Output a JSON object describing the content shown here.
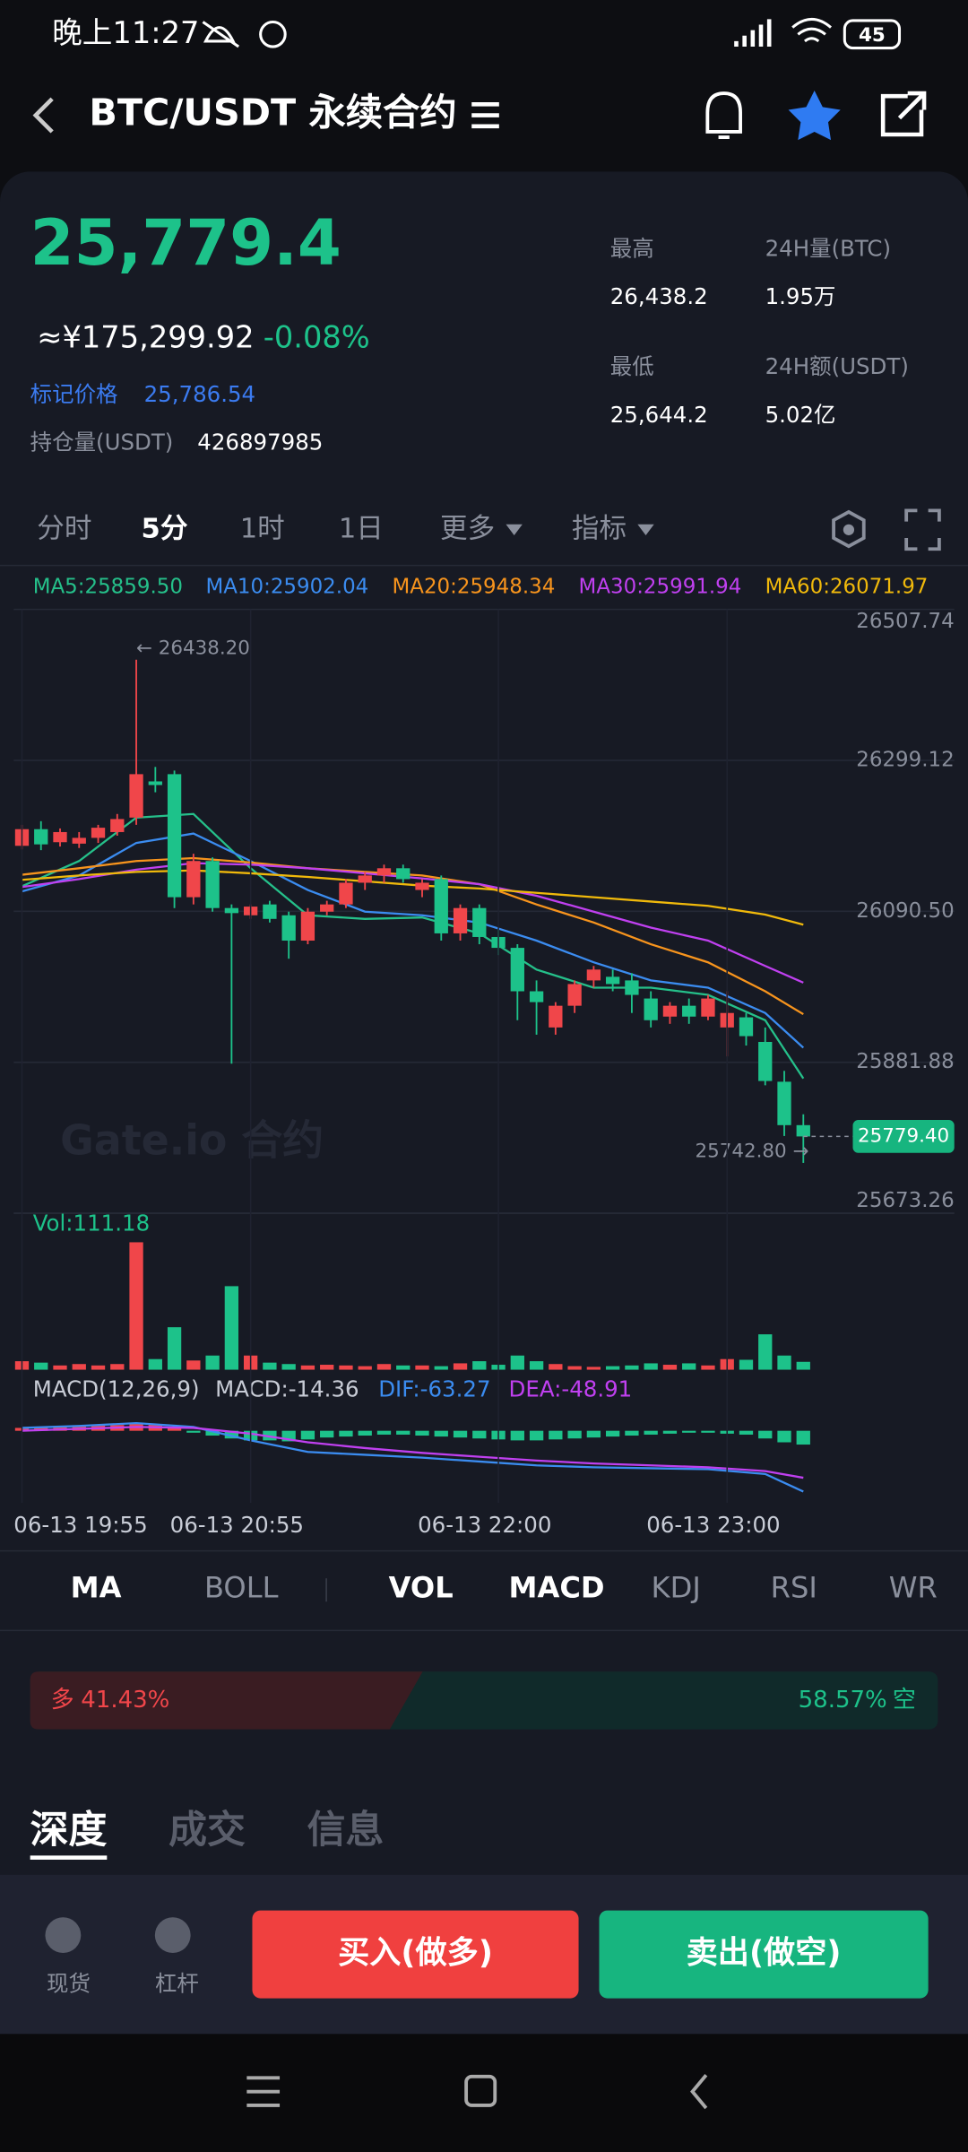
{
  "status_bar": {
    "time": "晚上11:27",
    "battery": "45"
  },
  "header": {
    "title": "BTC/USDT 永续合约"
  },
  "ticker": {
    "price": "25,779.4",
    "cny": "≈¥175,299.92",
    "change": "-0.08%",
    "mark_label": "标记价格",
    "mark_value": "25,786.54",
    "oi_label": "持仓量(USDT)",
    "oi_value": "426897985",
    "high_label": "最高",
    "high": "26,438.2",
    "vol_label": "24H量(BTC)",
    "vol": "1.95万",
    "low_label": "最低",
    "low": "25,644.2",
    "amount_label": "24H额(USDT)",
    "amount": "5.02亿"
  },
  "intervals": [
    "分时",
    "5分",
    "1时",
    "1日",
    "更多",
    "指标"
  ],
  "chart": {
    "type": "candlestick",
    "ylim": [
      25673.26,
      26507.74
    ],
    "yticks": [
      26507.74,
      26299.12,
      {
        "value": 26090.5,
        "label": "26090.50"
      },
      25881.88,
      25673.26
    ],
    "candles": [
      [
        26181,
        26210,
        26176,
        26204
      ],
      [
        26204,
        26215,
        26175,
        26183
      ],
      [
        26186,
        26205,
        26180,
        26200
      ],
      [
        26184,
        26200,
        26178,
        26192
      ],
      [
        26192,
        26210,
        26185,
        26206
      ],
      [
        26200,
        26225,
        26195,
        26218
      ],
      [
        26220,
        26438.2,
        26210,
        26280
      ],
      [
        26270,
        26290,
        26255,
        26265
      ],
      [
        26280,
        26285,
        26095,
        26110
      ],
      [
        26110,
        26170,
        26100,
        26160
      ],
      [
        26160,
        26165,
        26090,
        26095
      ],
      [
        26095,
        26100,
        25880,
        26088
      ],
      [
        26085,
        26100,
        26080,
        26097
      ],
      [
        26100,
        26105,
        26075,
        26080
      ],
      [
        26085,
        26090,
        26025,
        26050
      ],
      [
        26050,
        26095,
        26045,
        26090
      ],
      [
        26090,
        26105,
        26085,
        26100
      ],
      [
        26100,
        26135,
        26095,
        26130
      ],
      [
        26130,
        26145,
        26120,
        26140
      ],
      [
        26140,
        26155,
        26130,
        26150
      ],
      [
        26150,
        26155,
        26130,
        26135
      ],
      [
        26120,
        26135,
        26110,
        26130
      ],
      [
        26135,
        26140,
        26050,
        26060
      ],
      [
        26060,
        26100,
        26050,
        26095
      ],
      [
        26095,
        26100,
        26045,
        26055
      ],
      [
        26055,
        26065,
        26030,
        26040
      ],
      [
        26040,
        26045,
        25940,
        25980
      ],
      [
        25980,
        25995,
        25920,
        25965
      ],
      [
        25930,
        25965,
        25920,
        25960
      ],
      [
        25960,
        25995,
        25950,
        25990
      ],
      [
        25995,
        26015,
        25985,
        26010
      ],
      [
        26000,
        26010,
        25980,
        25990
      ],
      [
        25995,
        26005,
        25950,
        25975
      ],
      [
        25970,
        25980,
        25930,
        25940
      ],
      [
        25945,
        25965,
        25935,
        25960
      ],
      [
        25960,
        25970,
        25935,
        25945
      ],
      [
        25945,
        25975,
        25940,
        25970
      ],
      [
        25930,
        25980,
        25890,
        25950
      ],
      [
        25944,
        25950,
        25905,
        25918
      ],
      [
        25910,
        25930,
        25850,
        25856
      ],
      [
        25855,
        25870,
        25780,
        25795
      ],
      [
        25795,
        25810,
        25742.8,
        25779.4
      ]
    ],
    "ma_index": [
      0,
      3,
      6,
      9,
      12,
      15,
      18,
      21,
      24,
      27,
      30,
      33,
      36,
      39,
      41
    ],
    "ma": [
      {
        "name": "MA5:25859.50",
        "color": "#25c08a",
        "values": [
          26125,
          26160,
          26220,
          26225,
          26150,
          26085,
          26080,
          26082,
          26060,
          26010,
          25985,
          25985,
          25975,
          25940,
          25859.5
        ]
      },
      {
        "name": "MA10:25902.04",
        "color": "#3b8cf0",
        "values": [
          26118,
          26140,
          26185,
          26198,
          26160,
          26120,
          26090,
          26085,
          26075,
          26050,
          26020,
          25995,
          25985,
          25950,
          25902.04
        ]
      },
      {
        "name": "MA20:25948.34",
        "color": "#f7941d",
        "values": [
          26141,
          26150,
          26160,
          26164,
          26158,
          26150,
          26145,
          26140,
          26128,
          26100,
          26075,
          26045,
          26020,
          25980,
          25948.34
        ]
      },
      {
        "name": "MA30:25991.94",
        "color": "#c040f0",
        "values": [
          26124,
          26135,
          26148,
          26157,
          26155,
          26150,
          26143,
          26136,
          26128,
          26112,
          26090,
          26068,
          26050,
          26015,
          25991.94
        ]
      },
      {
        "name": "MA60:26071.97",
        "color": "#f0b90b",
        "values": [
          26134,
          26140,
          26145,
          26147,
          26143,
          26138,
          26132,
          26126,
          26122,
          26116,
          26110,
          26104,
          26098,
          26086,
          26071.97
        ]
      }
    ],
    "last_price": {
      "value": 25779.4,
      "label": "25779.40"
    },
    "high_note": "← 26438.20",
    "low_note": "25742.80 →",
    "watermark": "Gate.io 合约",
    "x_ticks": [
      {
        "value": 0,
        "label": "06-13 19:55"
      },
      {
        "value": 12,
        "label": "06-13 20:55"
      },
      {
        "value": 25,
        "label": "06-13 22:00"
      },
      {
        "value": 37,
        "label": "06-13 23:00"
      }
    ],
    "vol_label": "Vol:111.18",
    "vol_ylim": [
      0,
      1900
    ],
    "volume": [
      120,
      100,
      60,
      80,
      60,
      80,
      1800,
      150,
      600,
      130,
      200,
      1180,
      200,
      100,
      80,
      60,
      70,
      60,
      50,
      80,
      60,
      60,
      50,
      90,
      120,
      70,
      200,
      120,
      80,
      50,
      40,
      50,
      60,
      90,
      70,
      90,
      60,
      150,
      140,
      500,
      200,
      111.18
    ],
    "macd_labels": [
      "MACD(12,26,9)",
      "MACD:-14.36",
      "DIF:-63.27",
      "DEA:-48.91"
    ],
    "macd_ylim": [
      -75,
      25
    ],
    "macd_hist": [
      3,
      4,
      5,
      5,
      6,
      6,
      8,
      7,
      3,
      -2,
      -5,
      -8,
      -10,
      -10,
      -11,
      -9,
      -7,
      -6,
      -5,
      -4,
      -4,
      -5,
      -6,
      -7,
      -8,
      -9,
      -10,
      -10,
      -9,
      -8,
      -7,
      -6,
      -5,
      -4,
      -3,
      -2,
      -2,
      -3,
      -4,
      -8,
      -12,
      -14.36
    ],
    "dif": [
      3,
      5,
      8,
      4,
      -10,
      -22,
      -25,
      -28,
      -32,
      -36,
      -38,
      -39,
      -40,
      -45,
      -63.27
    ],
    "dea": [
      0,
      2,
      4,
      3,
      -3,
      -12,
      -18,
      -23,
      -27,
      -31,
      -34,
      -36,
      -38,
      -42,
      -48.91
    ]
  },
  "indicators": [
    "MA",
    "BOLL",
    "VOL",
    "MACD",
    "KDJ",
    "RSI",
    "WR"
  ],
  "sentiment": {
    "long": {
      "label": "多",
      "value": 41.43,
      "value_label": "41.43%"
    },
    "short": {
      "label": "空",
      "value": 58.57,
      "value_label": "58.57%"
    }
  },
  "tabs": [
    "深度",
    "成交",
    "信息"
  ],
  "bottom": {
    "spot": "现货",
    "margin": "杠杆",
    "buy": "买入(做多)",
    "sell": "卖出(做空)"
  }
}
